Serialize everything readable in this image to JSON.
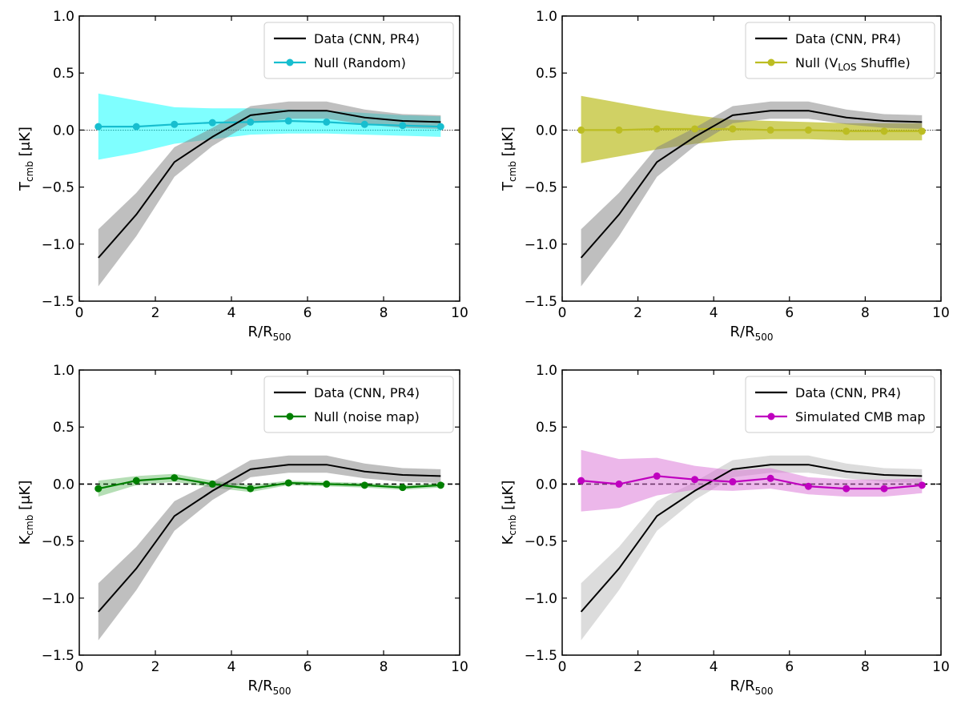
{
  "chart_data": [
    {
      "id": "top-left",
      "type": "line",
      "xlabel": {
        "main": "R/R",
        "sub": "500"
      },
      "ylabel": {
        "main": "T",
        "sub": "cmb",
        "unit": "[μK]"
      },
      "xlim": [
        0,
        10
      ],
      "ylim": [
        -1.5,
        1.0
      ],
      "xticks": [
        0,
        2,
        4,
        6,
        8,
        10
      ],
      "xtick_labels": [
        "0",
        "2",
        "4",
        "6",
        "8",
        "10"
      ],
      "yticks": [
        -1.5,
        -1.0,
        -0.5,
        0.0,
        0.5,
        1.0
      ],
      "ytick_labels": [
        "−1.5",
        "−1.0",
        "−0.5",
        "0.0",
        "0.5",
        "1.0"
      ],
      "zero_line": "dotted",
      "legend_position": "top-right",
      "x": [
        0.5,
        1.5,
        2.5,
        3.5,
        4.5,
        5.5,
        6.5,
        7.5,
        8.5,
        9.5
      ],
      "series": [
        {
          "name": "Null (Random)",
          "label_main": "Null (Random)",
          "color": "#17becf",
          "band_color": "#00ffff",
          "band_opacity": 0.5,
          "markers": true,
          "values": [
            0.03,
            0.03,
            0.05,
            0.065,
            0.07,
            0.08,
            0.07,
            0.05,
            0.04,
            0.03
          ],
          "lower": [
            -0.26,
            -0.2,
            -0.12,
            -0.08,
            -0.04,
            -0.03,
            -0.03,
            -0.04,
            -0.05,
            -0.06
          ],
          "upper": [
            0.32,
            0.26,
            0.2,
            0.19,
            0.19,
            0.18,
            0.17,
            0.15,
            0.13,
            0.12
          ]
        },
        {
          "name": "Data (CNN, PR4)",
          "label_main": "Data (CNN, PR4)",
          "color": "#000000",
          "band_color": "#808080",
          "band_opacity": 0.5,
          "markers": false,
          "values": [
            -1.12,
            -0.74,
            -0.28,
            -0.06,
            0.13,
            0.17,
            0.17,
            0.11,
            0.08,
            0.07
          ],
          "lower": [
            -1.37,
            -0.93,
            -0.41,
            -0.14,
            0.06,
            0.1,
            0.1,
            0.05,
            0.02,
            0.01
          ],
          "upper": [
            -0.87,
            -0.55,
            -0.15,
            0.02,
            0.21,
            0.25,
            0.25,
            0.18,
            0.14,
            0.13
          ]
        }
      ],
      "legend": [
        {
          "label_main": "Data (CNN, PR4)",
          "color": "#000000",
          "markers": false
        },
        {
          "label_main": "Null (Random)",
          "color": "#17becf",
          "markers": true
        }
      ]
    },
    {
      "id": "top-right",
      "type": "line",
      "xlabel": {
        "main": "R/R",
        "sub": "500"
      },
      "ylabel": {
        "main": "T",
        "sub": "cmb",
        "unit": "[μK]"
      },
      "xlim": [
        0,
        10
      ],
      "ylim": [
        -1.5,
        1.0
      ],
      "xticks": [
        0,
        2,
        4,
        6,
        8,
        10
      ],
      "xtick_labels": [
        "0",
        "2",
        "4",
        "6",
        "8",
        "10"
      ],
      "yticks": [
        -1.5,
        -1.0,
        -0.5,
        0.0,
        0.5,
        1.0
      ],
      "ytick_labels": [
        "−1.5",
        "−1.0",
        "−0.5",
        "0.0",
        "0.5",
        "1.0"
      ],
      "zero_line": "dotted",
      "legend_position": "top-right",
      "x": [
        0.5,
        1.5,
        2.5,
        3.5,
        4.5,
        5.5,
        6.5,
        7.5,
        8.5,
        9.5
      ],
      "series": [
        {
          "name": "Null (VLOS Shuffle)",
          "color": "#bcbd22",
          "band_color": "#bcbd22",
          "band_opacity": 0.7,
          "markers": true,
          "values": [
            0.0,
            0.0,
            0.01,
            0.01,
            0.01,
            0.0,
            0.0,
            -0.01,
            -0.01,
            -0.01
          ],
          "lower": [
            -0.29,
            -0.23,
            -0.17,
            -0.12,
            -0.09,
            -0.08,
            -0.08,
            -0.09,
            -0.09,
            -0.09
          ],
          "upper": [
            0.3,
            0.24,
            0.18,
            0.13,
            0.09,
            0.08,
            0.07,
            0.06,
            0.06,
            0.06
          ]
        },
        {
          "name": "Data (CNN, PR4)",
          "color": "#000000",
          "band_color": "#808080",
          "band_opacity": 0.5,
          "markers": false,
          "values": [
            -1.12,
            -0.74,
            -0.28,
            -0.06,
            0.13,
            0.17,
            0.17,
            0.11,
            0.08,
            0.07
          ],
          "lower": [
            -1.37,
            -0.93,
            -0.41,
            -0.14,
            0.06,
            0.1,
            0.1,
            0.05,
            0.02,
            0.01
          ],
          "upper": [
            -0.87,
            -0.55,
            -0.15,
            0.02,
            0.21,
            0.25,
            0.25,
            0.18,
            0.14,
            0.13
          ]
        }
      ],
      "legend": [
        {
          "label_main": "Data (CNN, PR4)",
          "color": "#000000",
          "markers": false
        },
        {
          "label_main": "Null (V",
          "label_sub": "LOS",
          "label_tail": " Shuffle)",
          "color": "#bcbd22",
          "markers": true
        }
      ]
    },
    {
      "id": "bottom-left",
      "type": "line",
      "xlabel": {
        "main": "R/R",
        "sub": "500"
      },
      "ylabel": {
        "main": "K",
        "sub": "cmb",
        "unit": "[μK]"
      },
      "xlim": [
        0,
        10
      ],
      "ylim": [
        -1.5,
        1.0
      ],
      "xticks": [
        0,
        2,
        4,
        6,
        8,
        10
      ],
      "xtick_labels": [
        "0",
        "2",
        "4",
        "6",
        "8",
        "10"
      ],
      "yticks": [
        -1.5,
        -1.0,
        -0.5,
        0.0,
        0.5,
        1.0
      ],
      "ytick_labels": [
        "−1.5",
        "−1.0",
        "−0.5",
        "0.0",
        "0.5",
        "1.0"
      ],
      "zero_line": "dashed",
      "legend_position": "top-right",
      "x": [
        0.5,
        1.5,
        2.5,
        3.5,
        4.5,
        5.5,
        6.5,
        7.5,
        8.5,
        9.5
      ],
      "series": [
        {
          "name": "Null (noise map)",
          "color": "#008000",
          "band_color": "#2ca02c",
          "band_opacity": 0.35,
          "markers": true,
          "values": [
            -0.04,
            0.03,
            0.055,
            0.0,
            -0.04,
            0.01,
            0.0,
            -0.01,
            -0.03,
            -0.01
          ],
          "lower": [
            -0.11,
            -0.01,
            0.02,
            -0.03,
            -0.07,
            -0.01,
            -0.02,
            -0.03,
            -0.05,
            -0.03
          ],
          "upper": [
            0.03,
            0.07,
            0.09,
            0.03,
            -0.01,
            0.03,
            0.02,
            0.01,
            -0.01,
            0.01
          ]
        },
        {
          "name": "Data (CNN, PR4)",
          "color": "#000000",
          "band_color": "#808080",
          "band_opacity": 0.5,
          "markers": false,
          "values": [
            -1.12,
            -0.74,
            -0.28,
            -0.06,
            0.13,
            0.17,
            0.17,
            0.11,
            0.08,
            0.07
          ],
          "lower": [
            -1.37,
            -0.93,
            -0.41,
            -0.14,
            0.06,
            0.1,
            0.1,
            0.05,
            0.02,
            0.01
          ],
          "upper": [
            -0.87,
            -0.55,
            -0.15,
            0.02,
            0.21,
            0.25,
            0.25,
            0.18,
            0.14,
            0.13
          ]
        }
      ],
      "legend": [
        {
          "label_main": "Data (CNN, PR4)",
          "color": "#000000",
          "markers": false
        },
        {
          "label_main": "Null (noise map)",
          "color": "#008000",
          "markers": true
        }
      ]
    },
    {
      "id": "bottom-right",
      "type": "line",
      "xlabel": {
        "main": "R/R",
        "sub": "500"
      },
      "ylabel": {
        "main": "K",
        "sub": "cmb",
        "unit": "[μK]"
      },
      "xlim": [
        0,
        10
      ],
      "ylim": [
        -1.5,
        1.0
      ],
      "xticks": [
        0,
        2,
        4,
        6,
        8,
        10
      ],
      "xtick_labels": [
        "0",
        "2",
        "4",
        "6",
        "8",
        "10"
      ],
      "yticks": [
        -1.5,
        -1.0,
        -0.5,
        0.0,
        0.5,
        1.0
      ],
      "ytick_labels": [
        "−1.5",
        "−1.0",
        "−0.5",
        "0.0",
        "0.5",
        "1.0"
      ],
      "zero_line": "dashed",
      "legend_position": "top-right",
      "x": [
        0.5,
        1.5,
        2.5,
        3.5,
        4.5,
        5.5,
        6.5,
        7.5,
        8.5,
        9.5
      ],
      "series": [
        {
          "name": "Data (CNN, PR4)",
          "color": "#000000",
          "band_color": "#c0c0c0",
          "band_opacity": 0.55,
          "markers": false,
          "values": [
            -1.12,
            -0.74,
            -0.28,
            -0.06,
            0.13,
            0.17,
            0.17,
            0.11,
            0.08,
            0.07
          ],
          "lower": [
            -1.37,
            -0.93,
            -0.41,
            -0.14,
            0.06,
            0.1,
            0.1,
            0.05,
            0.02,
            0.01
          ],
          "upper": [
            -0.87,
            -0.55,
            -0.15,
            0.02,
            0.21,
            0.25,
            0.25,
            0.18,
            0.14,
            0.13
          ]
        },
        {
          "name": "Simulated CMB map",
          "color": "#bf00bf",
          "band_color": "#da70d6",
          "band_opacity": 0.5,
          "markers": true,
          "values": [
            0.03,
            0.0,
            0.07,
            0.04,
            0.02,
            0.05,
            -0.02,
            -0.04,
            -0.04,
            -0.01
          ],
          "lower": [
            -0.24,
            -0.21,
            -0.1,
            -0.05,
            -0.06,
            -0.04,
            -0.09,
            -0.11,
            -0.11,
            -0.08
          ],
          "upper": [
            0.3,
            0.22,
            0.23,
            0.16,
            0.12,
            0.14,
            0.06,
            0.04,
            0.04,
            0.05
          ]
        }
      ],
      "legend": [
        {
          "label_main": "Data (CNN, PR4)",
          "color": "#000000",
          "markers": false
        },
        {
          "label_main": "Simulated CMB map",
          "color": "#bf00bf",
          "markers": true
        }
      ]
    }
  ]
}
